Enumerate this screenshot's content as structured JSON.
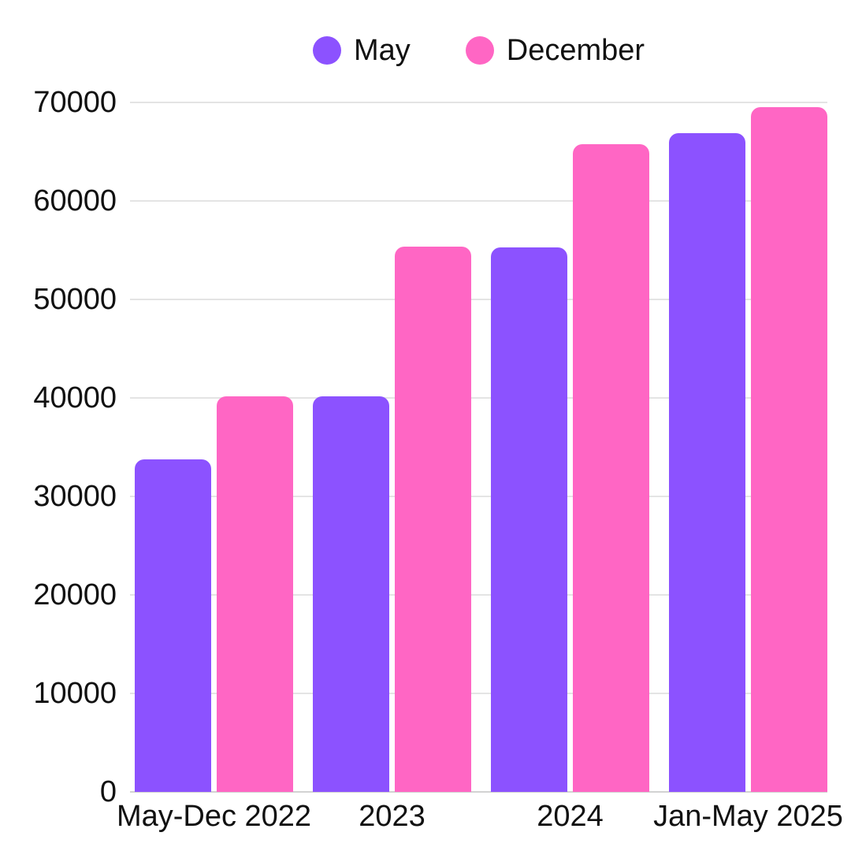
{
  "chart_data": {
    "type": "bar",
    "title": "",
    "categories": [
      "May-Dec 2022",
      "2023",
      "2024",
      "Jan-May 2025"
    ],
    "series": [
      {
        "name": "May",
        "color": "#8C52FF",
        "values": [
          33800,
          40200,
          55300,
          66900
        ]
      },
      {
        "name": "December",
        "color": "#FF66C4",
        "values": [
          40200,
          55400,
          65800,
          69500
        ]
      }
    ],
    "ylim": [
      0,
      70000
    ],
    "ytick_step": 10000,
    "ytick_labels": [
      "0",
      "10000",
      "20000",
      "30000",
      "40000",
      "50000",
      "60000",
      "70000"
    ],
    "xlabel": "",
    "ylabel": "",
    "grid": true,
    "legend_position": "top"
  },
  "colors": {
    "background": "#ffffff",
    "grid": "#e4e4e4",
    "baseline": "#d2d2d2",
    "axis_text": "#111111"
  }
}
